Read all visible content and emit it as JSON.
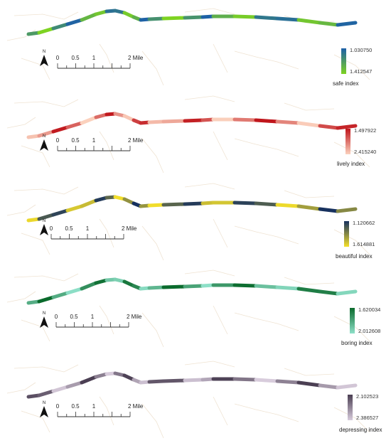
{
  "scale_labels": [
    "0",
    "0.5",
    "1",
    "2 Mile"
  ],
  "north_label": "N",
  "panels": [
    {
      "legend_name": "safe index",
      "legend_max": "1.030750",
      "legend_min": "1.412547",
      "color_dark": "#1c5fa8",
      "color_light": "#7ed321"
    },
    {
      "legend_name": "lively index",
      "legend_max": "1.497922",
      "legend_min": "2.415240",
      "color_dark": "#c0161c",
      "color_light": "#fbd1bd"
    },
    {
      "legend_name": "beautiful index",
      "legend_max": "1.120662",
      "legend_min": "1.614881",
      "color_dark": "#16305e",
      "color_light": "#f5e02a"
    },
    {
      "legend_name": "boring index",
      "legend_max": "1.620034",
      "legend_min": "2.012608",
      "color_dark": "#0a6a2c",
      "color_light": "#8ee0c8"
    },
    {
      "legend_name": "depressing index",
      "legend_max": "2.102523",
      "legend_min": "2.386527",
      "color_dark": "#4a3e52",
      "color_light": "#d8ccdc"
    }
  ]
}
